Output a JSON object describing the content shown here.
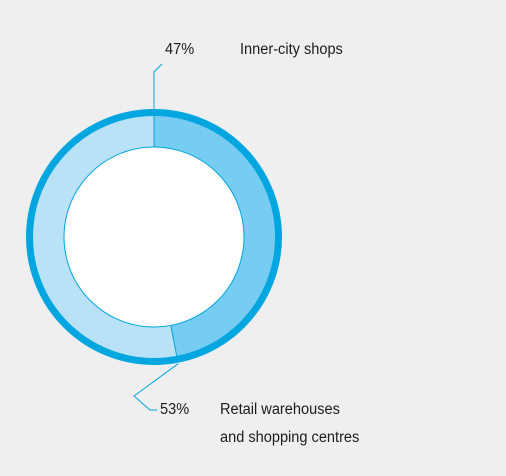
{
  "colors": {
    "background": "#efeff0",
    "outer_ring": "#00a6e0",
    "inner_city_segment": "#76ccf1",
    "retail_segment": "#b9e2f6",
    "leader_line": "#00a6e0"
  },
  "chart_data": {
    "type": "pie",
    "style": "donut",
    "title": "",
    "slices": [
      {
        "name": "Inner-city shops",
        "value": 47,
        "label": "47%",
        "color": "#76ccf1"
      },
      {
        "name": "Retail warehouses\nand shopping centres",
        "value": 53,
        "label": "53%",
        "color": "#b9e2f6"
      }
    ],
    "start_angle": "top (12 o'clock)",
    "direction": "clockwise",
    "legend": "none (direct callout labels)"
  }
}
